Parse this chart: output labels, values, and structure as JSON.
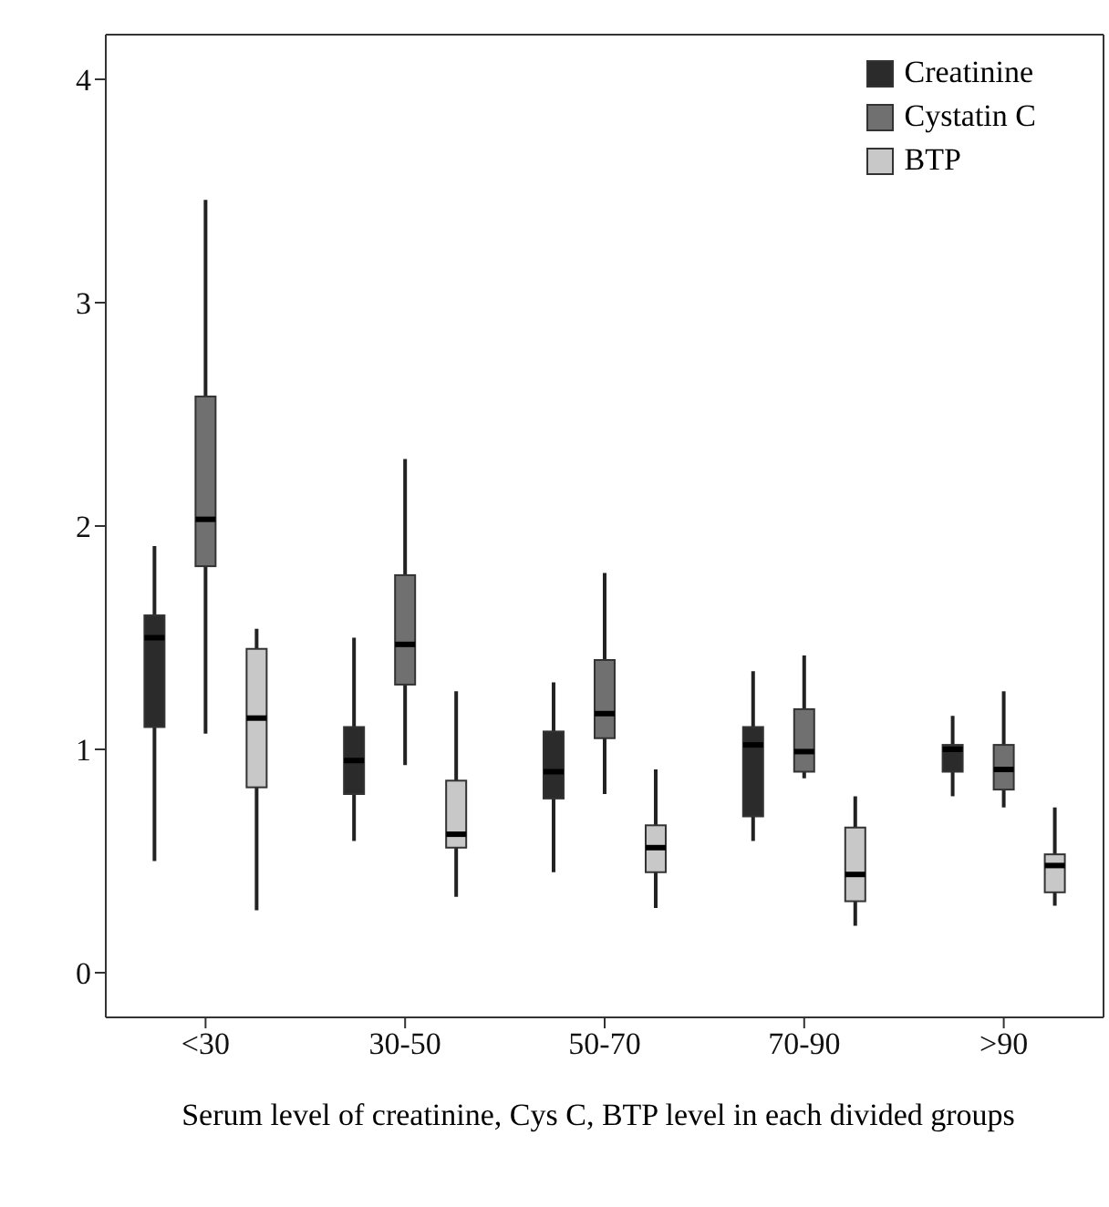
{
  "chart_data": {
    "type": "box",
    "xlabel": "Serum level of creatinine, Cys C, BTP level in each divided groups",
    "categories": [
      "<30",
      "30-50",
      "50-70",
      "70-90",
      ">90"
    ],
    "ylim": [
      -0.2,
      4.2
    ],
    "yticks": [
      0,
      1,
      2,
      3,
      4
    ],
    "grid": false,
    "legend": "top right",
    "series": [
      {
        "name": "Creatinine",
        "color": "#2b2b2b",
        "boxes": [
          {
            "low": 0.5,
            "q1": 1.1,
            "median": 1.5,
            "q3": 1.6,
            "high": 1.91
          },
          {
            "low": 0.59,
            "q1": 0.8,
            "median": 0.95,
            "q3": 1.1,
            "high": 1.5
          },
          {
            "low": 0.45,
            "q1": 0.78,
            "median": 0.9,
            "q3": 1.08,
            "high": 1.3
          },
          {
            "low": 0.59,
            "q1": 0.7,
            "median": 1.02,
            "q3": 1.1,
            "high": 1.35
          },
          {
            "low": 0.79,
            "q1": 0.9,
            "median": 1.0,
            "q3": 1.02,
            "high": 1.15
          }
        ]
      },
      {
        "name": "Cystatin C",
        "color": "#707070",
        "boxes": [
          {
            "low": 1.07,
            "q1": 1.82,
            "median": 2.03,
            "q3": 2.58,
            "high": 3.46
          },
          {
            "low": 0.93,
            "q1": 1.29,
            "median": 1.47,
            "q3": 1.78,
            "high": 2.3
          },
          {
            "low": 0.8,
            "q1": 1.05,
            "median": 1.16,
            "q3": 1.4,
            "high": 1.79
          },
          {
            "low": 0.87,
            "q1": 0.9,
            "median": 0.99,
            "q3": 1.18,
            "high": 1.42
          },
          {
            "low": 0.74,
            "q1": 0.82,
            "median": 0.91,
            "q3": 1.02,
            "high": 1.26
          }
        ]
      },
      {
        "name": "BTP",
        "color": "#c8c8c8",
        "boxes": [
          {
            "low": 0.28,
            "q1": 0.83,
            "median": 1.14,
            "q3": 1.45,
            "high": 1.54
          },
          {
            "low": 0.34,
            "q1": 0.56,
            "median": 0.62,
            "q3": 0.86,
            "high": 1.26
          },
          {
            "low": 0.29,
            "q1": 0.45,
            "median": 0.56,
            "q3": 0.66,
            "high": 0.91
          },
          {
            "low": 0.21,
            "q1": 0.32,
            "median": 0.44,
            "q3": 0.65,
            "high": 0.79
          },
          {
            "low": 0.3,
            "q1": 0.36,
            "median": 0.48,
            "q3": 0.53,
            "high": 0.74
          }
        ]
      }
    ]
  }
}
